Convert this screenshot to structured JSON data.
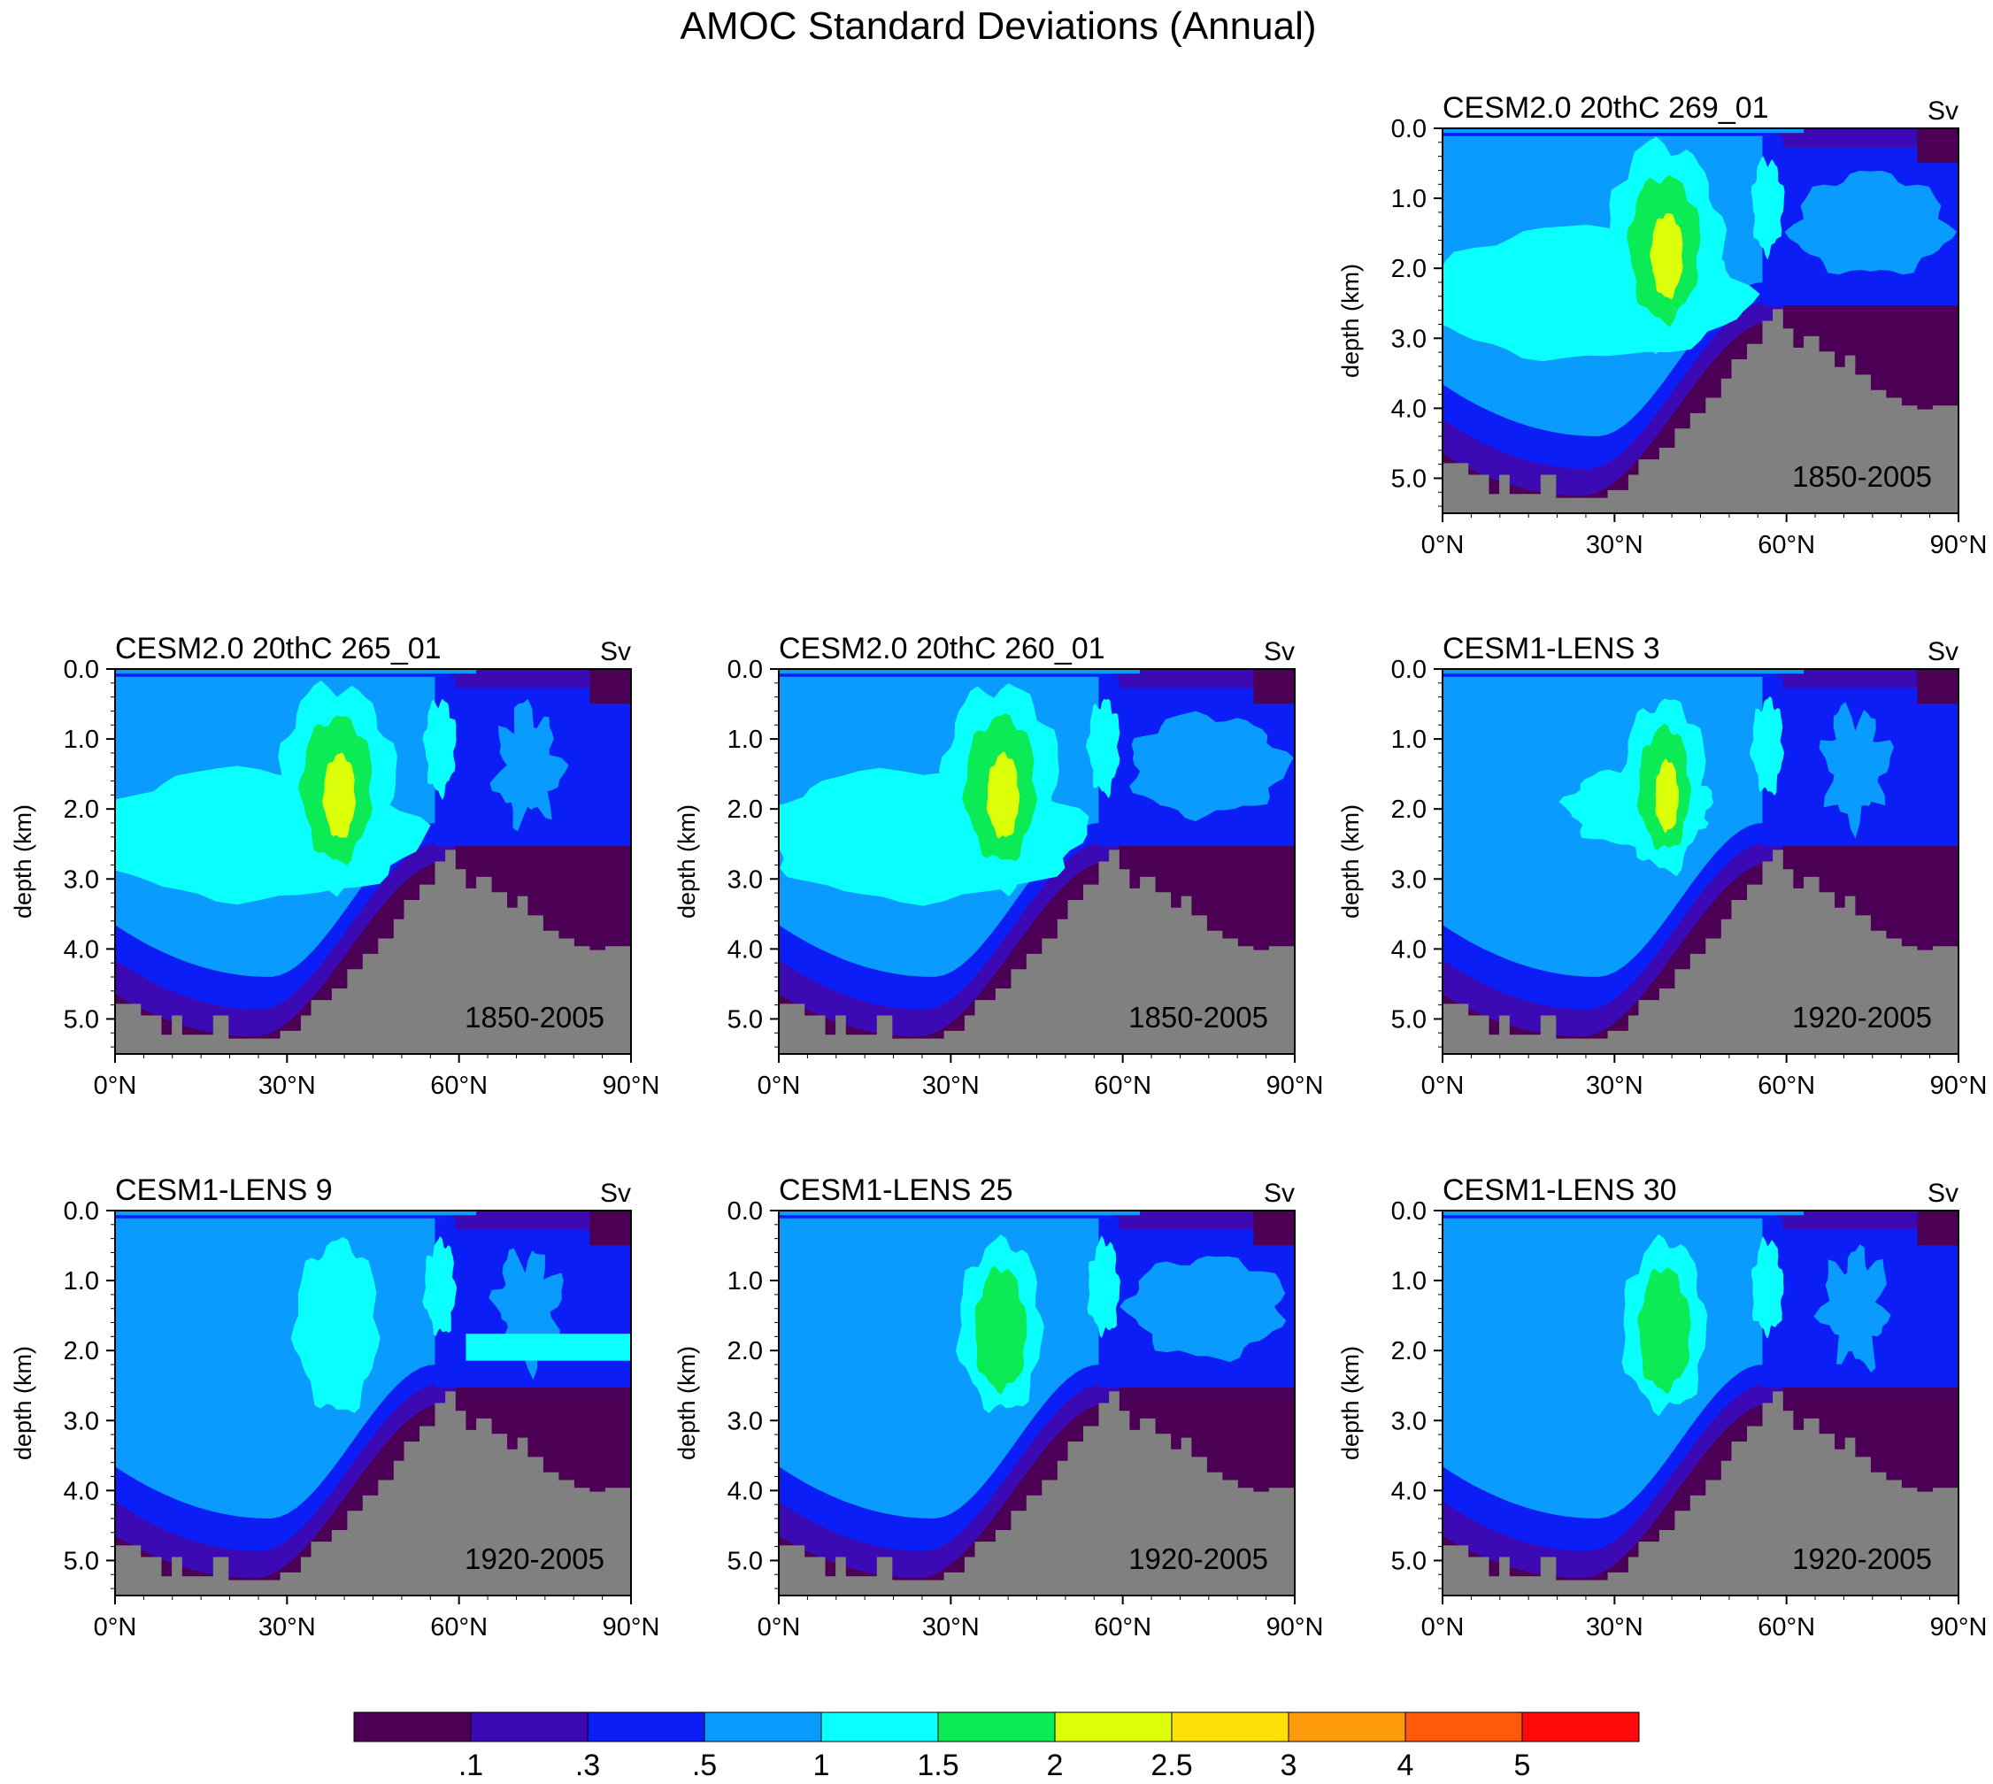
{
  "title": "AMOC Standard Deviations (Annual)",
  "chart_data": {
    "type": "contour",
    "colorbar": {
      "labels": [
        ".1",
        ".3",
        ".5",
        "1",
        "1.5",
        "2",
        "2.5",
        "3",
        "4",
        "5"
      ],
      "colors": [
        "#4b0055",
        "#3c0ab4",
        "#0a1ef5",
        "#0a9bff",
        "#0affff",
        "#0aeb55",
        "#dcff0a",
        "#ffe10a",
        "#ff9b0a",
        "#ff5a0a",
        "#ff0a0a"
      ]
    },
    "land_color": "#808080",
    "panels": [
      {
        "title": "CESM2.0 20thC 269_01",
        "unit": "Sv",
        "period": "1850-2005",
        "peak": "2.5",
        "row": 0,
        "col": 2
      },
      {
        "title": "CESM2.0 20thC 265_01",
        "unit": "Sv",
        "period": "1850-2005",
        "peak": "2.5",
        "row": 1,
        "col": 0
      },
      {
        "title": "CESM2.0 20thC 260_01",
        "unit": "Sv",
        "period": "1850-2005",
        "peak": "2.5",
        "row": 1,
        "col": 1
      },
      {
        "title": "CESM1-LENS 3",
        "unit": "Sv",
        "period": "1920-2005",
        "peak": "2.5",
        "row": 1,
        "col": 2
      },
      {
        "title": "CESM1-LENS 9",
        "unit": "Sv",
        "period": "1920-2005",
        "peak": "1.5",
        "row": 2,
        "col": 0
      },
      {
        "title": "CESM1-LENS 25",
        "unit": "Sv",
        "period": "1920-2005",
        "peak": "2",
        "row": 2,
        "col": 1
      },
      {
        "title": "CESM1-LENS 30",
        "unit": "Sv",
        "period": "1920-2005",
        "peak": "2",
        "row": 2,
        "col": 2
      }
    ],
    "xaxis": {
      "ticks": [
        "0°N",
        "30°N",
        "60°N",
        "90°N"
      ],
      "range": [
        0,
        90
      ]
    },
    "yaxis": {
      "label": "depth (km)",
      "ticks": [
        "0.0",
        "1.0",
        "2.0",
        "3.0",
        "4.0",
        "5.0"
      ],
      "range": [
        0,
        5.5
      ],
      "inverted": true
    }
  }
}
